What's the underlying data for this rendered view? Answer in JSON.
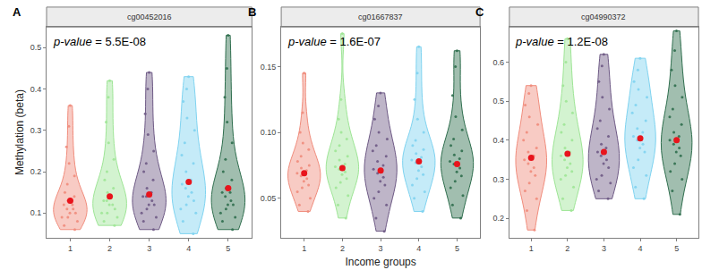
{
  "chart_data": [
    {
      "type": "violin",
      "panel": "A",
      "title": "cg00452016",
      "annotation": "p-value = 5.5E-08",
      "y_label": "Methylation (beta)",
      "categories": [
        "1",
        "2",
        "3",
        "4",
        "5"
      ],
      "colors": [
        "#f08c7c",
        "#9ee596",
        "#6e5a85",
        "#7fd3f0",
        "#2f6e4e"
      ],
      "values": [
        [
          0.06,
          0.07,
          0.08,
          0.09,
          0.09,
          0.1,
          0.1,
          0.11,
          0.11,
          0.12,
          0.12,
          0.13,
          0.14,
          0.15,
          0.17,
          0.19,
          0.22,
          0.26,
          0.31,
          0.36
        ],
        [
          0.07,
          0.08,
          0.09,
          0.1,
          0.1,
          0.11,
          0.12,
          0.12,
          0.13,
          0.13,
          0.14,
          0.15,
          0.16,
          0.18,
          0.2,
          0.23,
          0.27,
          0.32,
          0.38,
          0.42
        ],
        [
          0.06,
          0.08,
          0.09,
          0.1,
          0.11,
          0.12,
          0.12,
          0.13,
          0.14,
          0.14,
          0.15,
          0.16,
          0.18,
          0.2,
          0.22,
          0.25,
          0.29,
          0.34,
          0.4,
          0.44
        ],
        [
          0.05,
          0.08,
          0.1,
          0.11,
          0.12,
          0.13,
          0.14,
          0.15,
          0.16,
          0.17,
          0.18,
          0.2,
          0.22,
          0.24,
          0.27,
          0.3,
          0.33,
          0.37,
          0.4,
          0.43
        ],
        [
          0.06,
          0.08,
          0.09,
          0.1,
          0.11,
          0.12,
          0.12,
          0.13,
          0.14,
          0.15,
          0.15,
          0.16,
          0.18,
          0.2,
          0.23,
          0.27,
          0.32,
          0.38,
          0.45,
          0.53
        ]
      ],
      "means": [
        0.13,
        0.14,
        0.145,
        0.175,
        0.16
      ],
      "ylim": [
        0.04,
        0.55
      ],
      "yticks": [
        0.1,
        0.2,
        0.3,
        0.4,
        0.5
      ],
      "grid": false
    },
    {
      "type": "violin",
      "panel": "B",
      "title": "cg01667837",
      "annotation": "p-value = 1.6E-07",
      "x_label": "Income groups",
      "categories": [
        "1",
        "2",
        "3",
        "4",
        "5"
      ],
      "colors": [
        "#f08c7c",
        "#9ee596",
        "#6e5a85",
        "#7fd3f0",
        "#2f6e4e"
      ],
      "values": [
        [
          0.04,
          0.045,
          0.05,
          0.055,
          0.058,
          0.06,
          0.063,
          0.065,
          0.067,
          0.069,
          0.071,
          0.073,
          0.075,
          0.078,
          0.082,
          0.087,
          0.092,
          0.1,
          0.115,
          0.145
        ],
        [
          0.035,
          0.045,
          0.052,
          0.058,
          0.062,
          0.065,
          0.068,
          0.07,
          0.072,
          0.074,
          0.076,
          0.079,
          0.082,
          0.086,
          0.09,
          0.095,
          0.1,
          0.11,
          0.125,
          0.175
        ],
        [
          0.025,
          0.035,
          0.045,
          0.05,
          0.055,
          0.06,
          0.063,
          0.066,
          0.069,
          0.072,
          0.075,
          0.078,
          0.082,
          0.086,
          0.09,
          0.095,
          0.1,
          0.11,
          0.12,
          0.13
        ],
        [
          0.04,
          0.05,
          0.055,
          0.06,
          0.065,
          0.068,
          0.071,
          0.074,
          0.077,
          0.079,
          0.081,
          0.084,
          0.087,
          0.09,
          0.094,
          0.1,
          0.11,
          0.125,
          0.145,
          0.165
        ],
        [
          0.035,
          0.045,
          0.052,
          0.058,
          0.063,
          0.067,
          0.07,
          0.073,
          0.076,
          0.078,
          0.08,
          0.083,
          0.086,
          0.09,
          0.095,
          0.102,
          0.112,
          0.128,
          0.15,
          0.162
        ]
      ],
      "means": [
        0.069,
        0.073,
        0.071,
        0.078,
        0.076
      ],
      "ylim": [
        0.02,
        0.18
      ],
      "yticks": [
        0.05,
        {
          "value": 0.1,
          "label": "0.10"
        },
        0.15
      ],
      "grid": false
    },
    {
      "type": "violin",
      "panel": "C",
      "title": "cg04990372",
      "annotation": "p-value = 1.2E-08",
      "categories": [
        "1",
        "2",
        "3",
        "4",
        "5"
      ],
      "colors": [
        "#f08c7c",
        "#9ee596",
        "#6e5a85",
        "#7fd3f0",
        "#2f6e4e"
      ],
      "values": [
        [
          0.17,
          0.22,
          0.25,
          0.27,
          0.29,
          0.31,
          0.32,
          0.33,
          0.34,
          0.35,
          0.36,
          0.37,
          0.38,
          0.4,
          0.42,
          0.44,
          0.46,
          0.49,
          0.52,
          0.54
        ],
        [
          0.22,
          0.25,
          0.28,
          0.3,
          0.31,
          0.32,
          0.33,
          0.34,
          0.35,
          0.36,
          0.37,
          0.38,
          0.4,
          0.42,
          0.44,
          0.47,
          0.5,
          0.54,
          0.6,
          0.66
        ],
        [
          0.25,
          0.27,
          0.29,
          0.3,
          0.31,
          0.33,
          0.34,
          0.35,
          0.36,
          0.37,
          0.38,
          0.39,
          0.41,
          0.43,
          0.45,
          0.48,
          0.51,
          0.55,
          0.59,
          0.62
        ],
        [
          0.25,
          0.28,
          0.31,
          0.33,
          0.35,
          0.37,
          0.38,
          0.39,
          0.4,
          0.41,
          0.42,
          0.43,
          0.45,
          0.47,
          0.49,
          0.51,
          0.53,
          0.55,
          0.58,
          0.61
        ],
        [
          0.21,
          0.27,
          0.3,
          0.32,
          0.34,
          0.36,
          0.37,
          0.38,
          0.39,
          0.4,
          0.41,
          0.42,
          0.44,
          0.46,
          0.48,
          0.51,
          0.54,
          0.58,
          0.63,
          0.68
        ]
      ],
      "means": [
        0.355,
        0.365,
        0.37,
        0.405,
        0.4
      ],
      "ylim": [
        0.15,
        0.69
      ],
      "yticks": [
        0.2,
        0.3,
        0.4,
        0.5,
        0.6
      ],
      "grid": false
    }
  ]
}
